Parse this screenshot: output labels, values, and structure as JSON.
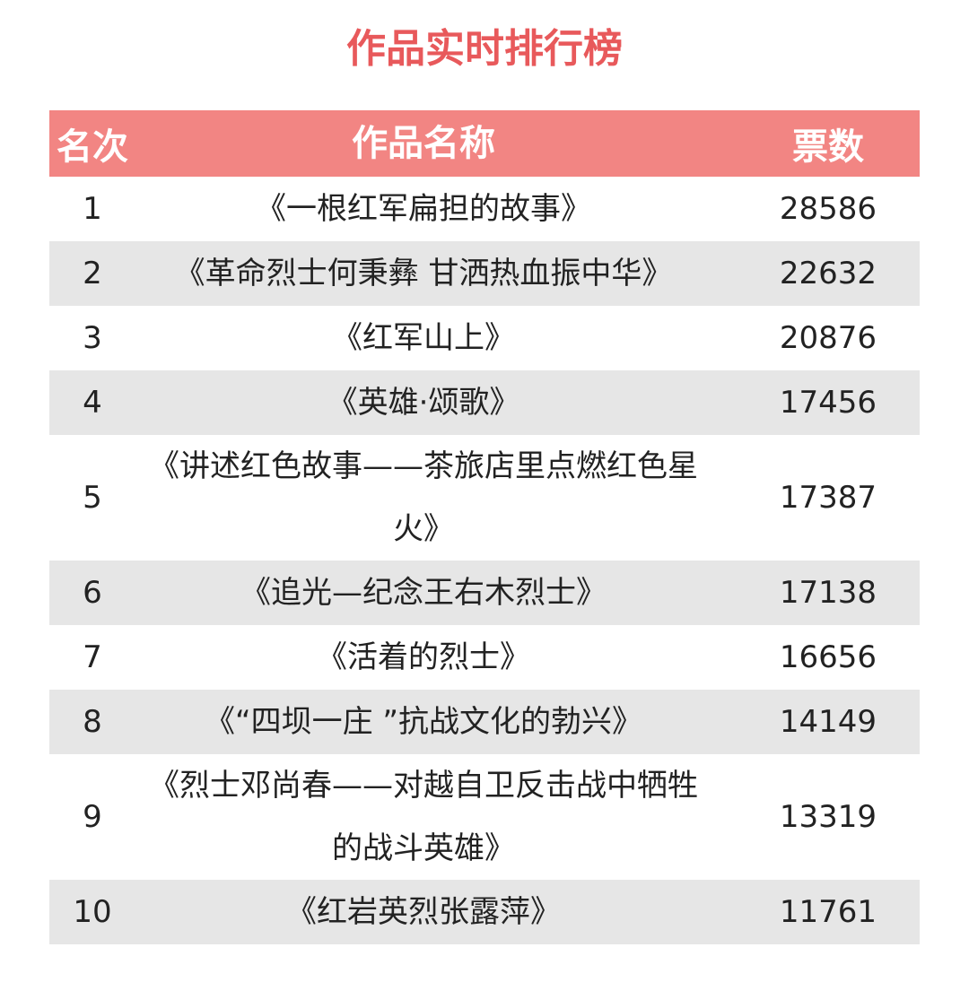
{
  "title": "作品实时排行榜",
  "table": {
    "header": [
      "名次",
      "作品名称",
      "票数"
    ],
    "rows": [
      [
        1,
        "《一根红军扁担的故事》",
        28586
      ],
      [
        2,
        "《革命烈士何秉彝 甘洒热血振中华》",
        22632
      ],
      [
        3,
        "《红军山上》",
        20876
      ],
      [
        4,
        "《英雄·颂歌》",
        17456
      ],
      [
        5,
        "《讲述红色故事——茶旅店里点燃红色星火》",
        17387
      ],
      [
        6,
        "《追光—纪念王右木烈士》",
        17138
      ],
      [
        7,
        "《活着的烈士》",
        16656
      ],
      [
        8,
        "《“四坝一庄 ”抗战文化的勃兴》",
        14149
      ],
      [
        9,
        "《烈士邓尚春——对越自卫反击战中牺牲的战斗英雄》",
        13319
      ],
      [
        10,
        "《红岩英烈张露萍》",
        11761
      ]
    ]
  }
}
